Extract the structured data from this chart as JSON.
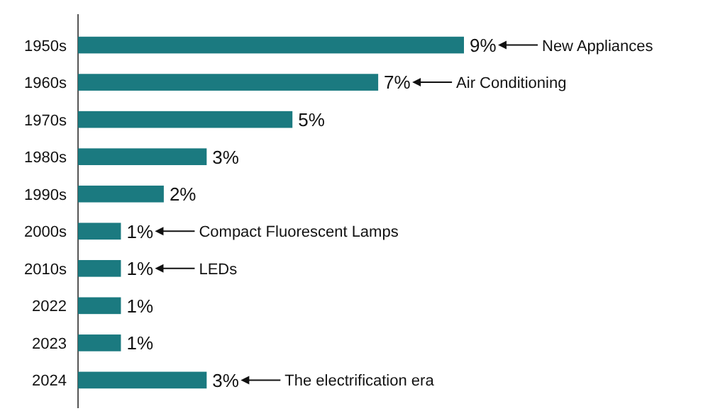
{
  "chart_data": {
    "type": "bar",
    "orientation": "horizontal",
    "categories": [
      "1950s",
      "1960s",
      "1970s",
      "1980s",
      "1990s",
      "2000s",
      "2010s",
      "2022",
      "2023",
      "2024"
    ],
    "values": [
      9,
      7,
      5,
      3,
      2,
      1,
      1,
      1,
      1,
      3
    ],
    "value_labels": [
      "9%",
      "7%",
      "5%",
      "3%",
      "2%",
      "1%",
      "1%",
      "1%",
      "1%",
      "3%"
    ],
    "color": "#1b7a80",
    "annotations": [
      "New Appliances",
      "Air Conditioning",
      "Compact Fluorescent Lamps",
      "LEDs",
      "The electrification era"
    ]
  }
}
